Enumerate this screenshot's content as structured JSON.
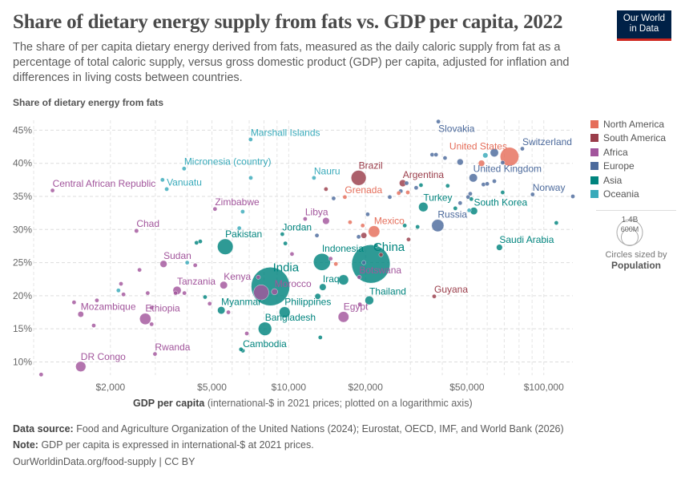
{
  "header": {
    "title": "Share of dietary energy supply from fats vs. GDP per capita, 2022",
    "subtitle": "The share of per capita dietary energy derived from fats, measured as the daily caloric supply from fat as a percentage of total caloric supply, versus gross domestic product (GDP) per capita, adjusted for inflation and differences in living costs between countries.",
    "logo_line1": "Our World",
    "logo_line2": "in Data"
  },
  "footer": {
    "source_label": "Data source:",
    "source_text": "Food and Agriculture Organization of the United Nations (2024); Eurostat, OECD, IMF, and World Bank (2026)",
    "note_label": "Note:",
    "note_text": "GDP per capita is expressed in international-$ at 2021 prices.",
    "url": "OurWorldinData.org/food-supply | CC BY"
  },
  "size_legend": {
    "big": "1.4B",
    "small": "600M",
    "caption": "Circles sized by",
    "variable": "Population"
  },
  "chart_data": {
    "type": "scatter",
    "title": "Share of dietary energy supply from fats vs. GDP per capita, 2022",
    "ylabel": "Share of dietary energy from fats",
    "xlabel_bold": "GDP per capita",
    "xlabel_rest": "(international-$ in 2021 prices; plotted on a logarithmic axis)",
    "x_scale": "log",
    "xlim": [
      1000,
      130000
    ],
    "ylim": [
      8,
      46.5
    ],
    "grid": true,
    "legend_position": "right",
    "x_ticks": [
      {
        "v": 2000,
        "label": "$2,000"
      },
      {
        "v": 5000,
        "label": "$5,000"
      },
      {
        "v": 10000,
        "label": "$10,000"
      },
      {
        "v": 20000,
        "label": "$20,000"
      },
      {
        "v": 50000,
        "label": "$50,000"
      },
      {
        "v": 100000,
        "label": "$100,000"
      }
    ],
    "y_ticks": [
      {
        "v": 10,
        "label": "10%"
      },
      {
        "v": 15,
        "label": "15%"
      },
      {
        "v": 20,
        "label": "20%"
      },
      {
        "v": 25,
        "label": "25%"
      },
      {
        "v": 30,
        "label": "30%"
      },
      {
        "v": 35,
        "label": "35%"
      },
      {
        "v": 40,
        "label": "40%"
      },
      {
        "v": 45,
        "label": "45%"
      }
    ],
    "regions": [
      {
        "key": "NA",
        "name": "North America",
        "color": "#E56E5A"
      },
      {
        "key": "SA",
        "name": "South America",
        "color": "#9A3D4A"
      },
      {
        "key": "AF",
        "name": "Africa",
        "color": "#A2559C"
      },
      {
        "key": "EU",
        "name": "Europe",
        "color": "#4C6A9C"
      },
      {
        "key": "AS",
        "name": "Asia",
        "color": "#00847E"
      },
      {
        "key": "OC",
        "name": "Oceania",
        "color": "#38AABA"
      }
    ],
    "points": [
      {
        "label": "India",
        "r": "AS",
        "x": 8480,
        "y": 21.4,
        "pop": 1420
      },
      {
        "label": "China",
        "r": "AS",
        "x": 21000,
        "y": 24.8,
        "pop": 1410
      },
      {
        "label": "United States",
        "r": "NA",
        "x": 73400,
        "y": 41.0,
        "pop": 333
      },
      {
        "label": "Indonesia",
        "r": "AS",
        "x": 13500,
        "y": 25.1,
        "pop": 275
      },
      {
        "label": "Pakistan",
        "r": "AS",
        "x": 5640,
        "y": 27.4,
        "pop": 235
      },
      {
        "label": "",
        "r": "AF",
        "x": 7800,
        "y": 20.5,
        "pop": 220
      },
      {
        "label": "Brazil",
        "r": "SA",
        "x": 18800,
        "y": 37.8,
        "pop": 215
      },
      {
        "label": "Bangladesh",
        "r": "AS",
        "x": 8070,
        "y": 15.0,
        "pop": 171
      },
      {
        "label": "Russia",
        "r": "EU",
        "x": 38400,
        "y": 30.6,
        "pop": 144
      },
      {
        "label": "Mexico",
        "r": "NA",
        "x": 21600,
        "y": 29.7,
        "pop": 127
      },
      {
        "label": "Ethiopia",
        "r": "AF",
        "x": 2740,
        "y": 16.5,
        "pop": 123
      },
      {
        "label": "Philippines",
        "r": "AS",
        "x": 9640,
        "y": 17.5,
        "pop": 116
      },
      {
        "label": "Egypt",
        "r": "AF",
        "x": 16400,
        "y": 16.8,
        "pop": 111
      },
      {
        "label": "DR Congo",
        "r": "AF",
        "x": 1530,
        "y": 9.3,
        "pop": 100
      },
      {
        "label": "",
        "r": "AS",
        "x": 16400,
        "y": 22.4,
        "pop": 98
      },
      {
        "label": "Turkey",
        "r": "AS",
        "x": 33700,
        "y": 33.4,
        "pop": 85
      },
      {
        "label": "Thailand",
        "r": "AS",
        "x": 20700,
        "y": 19.3,
        "pop": 72
      },
      {
        "label": "United Kingdom",
        "r": "EU",
        "x": 52900,
        "y": 37.8,
        "pop": 67
      },
      {
        "label": "Tanzania",
        "r": "AF",
        "x": 3650,
        "y": 20.8,
        "pop": 65
      },
      {
        "label": "Kenya",
        "r": "AF",
        "x": 5560,
        "y": 21.6,
        "pop": 54
      },
      {
        "label": "Myanmar",
        "r": "AS",
        "x": 5440,
        "y": 17.8,
        "pop": 54
      },
      {
        "label": "South Korea",
        "r": "AS",
        "x": 53200,
        "y": 32.8,
        "pop": 52
      },
      {
        "label": "Sudan",
        "r": "AF",
        "x": 3230,
        "y": 24.8,
        "pop": 47
      },
      {
        "label": "Argentina",
        "r": "SA",
        "x": 28000,
        "y": 37.0,
        "pop": 46
      },
      {
        "label": "",
        "r": "AF",
        "x": 14000,
        "y": 31.3,
        "pop": 45
      },
      {
        "label": "Iraq",
        "r": "AS",
        "x": 13600,
        "y": 21.3,
        "pop": 44
      },
      {
        "label": "Morocco",
        "r": "AF",
        "x": 8800,
        "y": 20.6,
        "pop": 37
      },
      {
        "label": "Saudi Arabia",
        "r": "AS",
        "x": 67000,
        "y": 27.3,
        "pop": 36
      },
      {
        "label": "Mozambique",
        "r": "AF",
        "x": 1530,
        "y": 17.2,
        "pop": 33
      },
      {
        "label": "",
        "r": "AS",
        "x": 13000,
        "y": 19.9,
        "pop": 33
      },
      {
        "label": "Chad",
        "r": "AF",
        "x": 2530,
        "y": 29.8,
        "pop": 18
      },
      {
        "label": "Cambodia",
        "r": "AS",
        "x": 6610,
        "y": 11.7,
        "pop": 17
      },
      {
        "label": "Zimbabwe",
        "r": "AF",
        "x": 5140,
        "y": 33.1,
        "pop": 16
      },
      {
        "label": "Rwanda",
        "r": "AF",
        "x": 2990,
        "y": 11.2,
        "pop": 14
      },
      {
        "label": "Jordan",
        "r": "AS",
        "x": 9440,
        "y": 29.3,
        "pop": 11
      },
      {
        "label": "Switzerland",
        "r": "EU",
        "x": 82400,
        "y": 42.2,
        "pop": 9
      },
      {
        "label": "Libya",
        "r": "AF",
        "x": 11600,
        "y": 31.6,
        "pop": 7
      },
      {
        "label": "Central African Republic",
        "r": "AF",
        "x": 1186,
        "y": 35.9,
        "pop": 5.5
      },
      {
        "label": "Norway",
        "r": "EU",
        "x": 90400,
        "y": 35.3,
        "pop": 5.5
      },
      {
        "label": "Slovakia",
        "r": "EU",
        "x": 38600,
        "y": 46.3,
        "pop": 5.4
      },
      {
        "label": "Botswana",
        "r": "AF",
        "x": 18900,
        "y": 22.8,
        "pop": 2.6
      },
      {
        "label": "Guyana",
        "r": "SA",
        "x": 37200,
        "y": 19.9,
        "pop": 0.8
      },
      {
        "label": "Vanuatu",
        "r": "OC",
        "x": 3324,
        "y": 36.1,
        "pop": 0.3
      },
      {
        "label": "Grenada",
        "r": "NA",
        "x": 16600,
        "y": 34.9,
        "pop": 0.1
      },
      {
        "label": "Micronesia (country)",
        "r": "OC",
        "x": 3890,
        "y": 39.2,
        "pop": 0.1
      },
      {
        "label": "Marshall Islands",
        "r": "OC",
        "x": 7090,
        "y": 43.6,
        "pop": 0.04
      },
      {
        "label": "Nauru",
        "r": "OC",
        "x": 12560,
        "y": 37.8,
        "pop": 0.01
      },
      {
        "label": "",
        "r": "AF",
        "x": 1070,
        "y": 8.1,
        "pop": 3
      },
      {
        "label": "",
        "r": "AF",
        "x": 1440,
        "y": 19.0,
        "pop": 3
      },
      {
        "label": "",
        "r": "AF",
        "x": 1770,
        "y": 19.3,
        "pop": 4
      },
      {
        "label": "",
        "r": "AF",
        "x": 1720,
        "y": 15.5,
        "pop": 4
      },
      {
        "label": "",
        "r": "AF",
        "x": 2200,
        "y": 21.8,
        "pop": 3
      },
      {
        "label": "",
        "r": "AF",
        "x": 2250,
        "y": 20.2,
        "pop": 5
      },
      {
        "label": "",
        "r": "AF",
        "x": 2600,
        "y": 23.9,
        "pop": 3
      },
      {
        "label": "",
        "r": "AF",
        "x": 2800,
        "y": 20.4,
        "pop": 8
      },
      {
        "label": "",
        "r": "AF",
        "x": 2900,
        "y": 18.2,
        "pop": 3
      },
      {
        "label": "",
        "r": "AF",
        "x": 2900,
        "y": 15.7,
        "pop": 5
      },
      {
        "label": "",
        "r": "AF",
        "x": 3600,
        "y": 20.4,
        "pop": 14
      },
      {
        "label": "",
        "r": "AF",
        "x": 3900,
        "y": 20.4,
        "pop": 4
      },
      {
        "label": "",
        "r": "AF",
        "x": 4300,
        "y": 24.6,
        "pop": 3
      },
      {
        "label": "",
        "r": "AF",
        "x": 4900,
        "y": 18.8,
        "pop": 5
      },
      {
        "label": "",
        "r": "AF",
        "x": 5800,
        "y": 17.5,
        "pop": 6
      },
      {
        "label": "",
        "r": "AF",
        "x": 6850,
        "y": 14.3,
        "pop": 4
      },
      {
        "label": "",
        "r": "AF",
        "x": 7600,
        "y": 22.8,
        "pop": 3
      },
      {
        "label": "",
        "r": "AF",
        "x": 10300,
        "y": 26.3,
        "pop": 3
      },
      {
        "label": "",
        "r": "AF",
        "x": 14600,
        "y": 25.6,
        "pop": 12
      },
      {
        "label": "",
        "r": "AF",
        "x": 19000,
        "y": 18.7,
        "pop": 2
      },
      {
        "label": "",
        "r": "AS",
        "x": 4350,
        "y": 28.0,
        "pop": 3
      },
      {
        "label": "",
        "r": "AS",
        "x": 4500,
        "y": 28.2,
        "pop": 3
      },
      {
        "label": "",
        "r": "AS",
        "x": 4700,
        "y": 19.8,
        "pop": 4
      },
      {
        "label": "",
        "r": "AS",
        "x": 6500,
        "y": 11.9,
        "pop": 2
      },
      {
        "label": "",
        "r": "AS",
        "x": 9700,
        "y": 27.9,
        "pop": 7
      },
      {
        "label": "",
        "r": "AS",
        "x": 13300,
        "y": 13.7,
        "pop": 2
      },
      {
        "label": "",
        "r": "AS",
        "x": 22000,
        "y": 27.6,
        "pop": 3
      },
      {
        "label": "",
        "r": "AS",
        "x": 28500,
        "y": 30.6,
        "pop": 3
      },
      {
        "label": "",
        "r": "AS",
        "x": 32000,
        "y": 30.4,
        "pop": 10
      },
      {
        "label": "",
        "r": "AS",
        "x": 33000,
        "y": 36.7,
        "pop": 2
      },
      {
        "label": "",
        "r": "AS",
        "x": 42000,
        "y": 36.6,
        "pop": 2
      },
      {
        "label": "",
        "r": "AS",
        "x": 45000,
        "y": 33.2,
        "pop": 10
      },
      {
        "label": "",
        "r": "AS",
        "x": 52000,
        "y": 34.6,
        "pop": 3
      },
      {
        "label": "",
        "r": "AS",
        "x": 69000,
        "y": 35.6,
        "pop": 3
      },
      {
        "label": "",
        "r": "AS",
        "x": 112000,
        "y": 31.0,
        "pop": 2
      },
      {
        "label": "",
        "r": "EU",
        "x": 12900,
        "y": 29.1,
        "pop": 2
      },
      {
        "label": "",
        "r": "EU",
        "x": 15000,
        "y": 34.7,
        "pop": 2
      },
      {
        "label": "",
        "r": "EU",
        "x": 18800,
        "y": 28.9,
        "pop": 2
      },
      {
        "label": "",
        "r": "EU",
        "x": 20400,
        "y": 32.3,
        "pop": 2
      },
      {
        "label": "",
        "r": "EU",
        "x": 24900,
        "y": 34.9,
        "pop": 3
      },
      {
        "label": "",
        "r": "EU",
        "x": 27500,
        "y": 35.8,
        "pop": 3
      },
      {
        "label": "",
        "r": "EU",
        "x": 29000,
        "y": 37.0,
        "pop": 4
      },
      {
        "label": "",
        "r": "EU",
        "x": 31600,
        "y": 36.3,
        "pop": 4
      },
      {
        "label": "",
        "r": "EU",
        "x": 36500,
        "y": 41.3,
        "pop": 4
      },
      {
        "label": "",
        "r": "EU",
        "x": 37800,
        "y": 41.3,
        "pop": 4
      },
      {
        "label": "",
        "r": "EU",
        "x": 41000,
        "y": 40.8,
        "pop": 10
      },
      {
        "label": "",
        "r": "EU",
        "x": 47000,
        "y": 40.2,
        "pop": 38
      },
      {
        "label": "",
        "r": "EU",
        "x": 47000,
        "y": 34.0,
        "pop": 5
      },
      {
        "label": "",
        "r": "EU",
        "x": 50500,
        "y": 34.9,
        "pop": 3
      },
      {
        "label": "",
        "r": "EU",
        "x": 51500,
        "y": 35.4,
        "pop": 10
      },
      {
        "label": "",
        "r": "EU",
        "x": 58000,
        "y": 36.8,
        "pop": 4
      },
      {
        "label": "",
        "r": "EU",
        "x": 60000,
        "y": 36.9,
        "pop": 3
      },
      {
        "label": "",
        "r": "EU",
        "x": 64000,
        "y": 41.6,
        "pop": 66
      },
      {
        "label": "",
        "r": "EU",
        "x": 64000,
        "y": 37.3,
        "pop": 4
      },
      {
        "label": "",
        "r": "EU",
        "x": 69000,
        "y": 40.1,
        "pop": 17
      },
      {
        "label": "",
        "r": "EU",
        "x": 130000,
        "y": 35.0,
        "pop": 1
      },
      {
        "label": "",
        "r": "EU",
        "x": 19700,
        "y": 25.0,
        "pop": 2
      },
      {
        "label": "",
        "r": "NA",
        "x": 15300,
        "y": 24.8,
        "pop": 3
      },
      {
        "label": "",
        "r": "NA",
        "x": 19500,
        "y": 30.6,
        "pop": 2
      },
      {
        "label": "",
        "r": "NA",
        "x": 17400,
        "y": 31.1,
        "pop": 2
      },
      {
        "label": "",
        "r": "NA",
        "x": 27000,
        "y": 35.5,
        "pop": 2
      },
      {
        "label": "",
        "r": "NA",
        "x": 29300,
        "y": 35.6,
        "pop": 2
      },
      {
        "label": "",
        "r": "NA",
        "x": 57000,
        "y": 40.0,
        "pop": 38
      },
      {
        "label": "",
        "r": "SA",
        "x": 14000,
        "y": 36.1,
        "pop": 2
      },
      {
        "label": "",
        "r": "SA",
        "x": 19700,
        "y": 29.1,
        "pop": 33
      },
      {
        "label": "",
        "r": "SA",
        "x": 29500,
        "y": 28.5,
        "pop": 3
      },
      {
        "label": "",
        "r": "SA",
        "x": 23000,
        "y": 26.2,
        "pop": 2
      },
      {
        "label": "",
        "r": "OC",
        "x": 4000,
        "y": 25.0,
        "pop": 2
      },
      {
        "label": "",
        "r": "OC",
        "x": 2150,
        "y": 20.8,
        "pop": 2
      },
      {
        "label": "",
        "r": "OC",
        "x": 6400,
        "y": 30.2,
        "pop": 1
      },
      {
        "label": "",
        "r": "OC",
        "x": 6600,
        "y": 32.7,
        "pop": 1
      },
      {
        "label": "",
        "r": "OC",
        "x": 7100,
        "y": 37.8,
        "pop": 1
      },
      {
        "label": "",
        "r": "OC",
        "x": 3200,
        "y": 37.5,
        "pop": 1
      },
      {
        "label": "",
        "r": "OC",
        "x": 59000,
        "y": 41.2,
        "pop": 26
      },
      {
        "label": "",
        "r": "OC",
        "x": 51000,
        "y": 32.9,
        "pop": 5
      }
    ]
  }
}
